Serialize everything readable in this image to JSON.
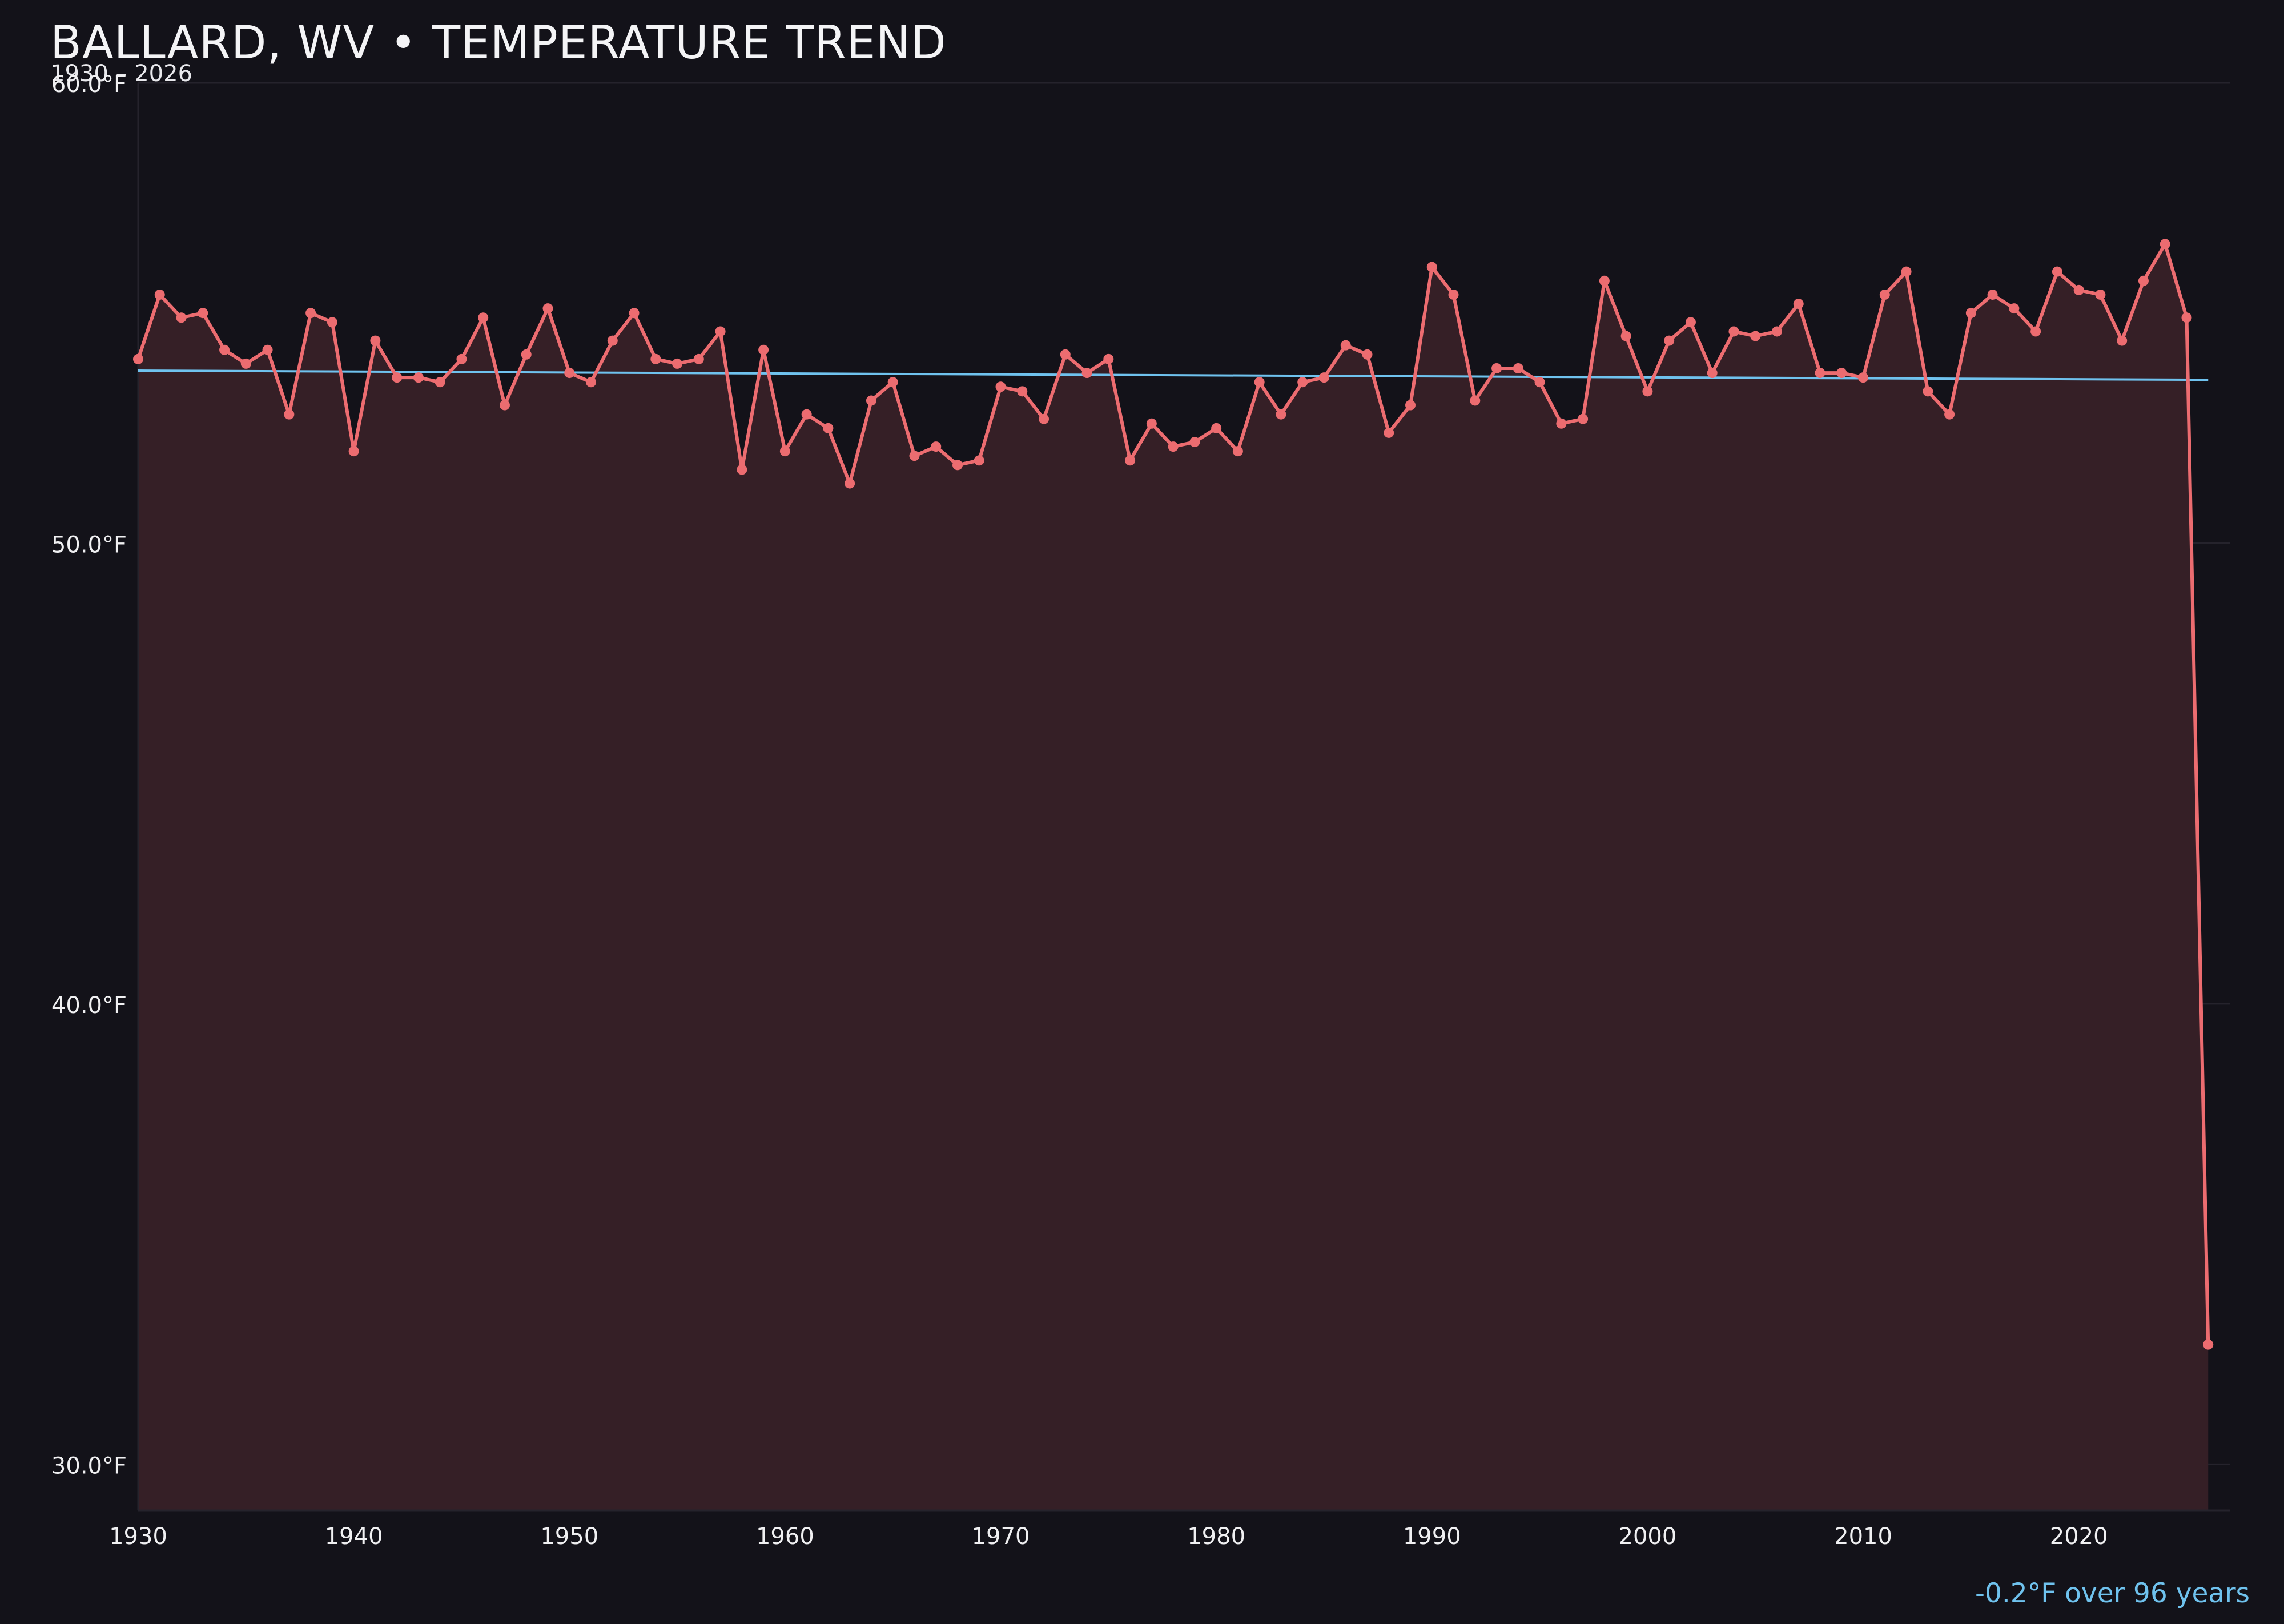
{
  "header": {
    "title": "BALLARD, WV • TEMPERATURE TREND",
    "subtitle": "1930 – 2026"
  },
  "footer": {
    "trend_note": "-0.2°F over 96 years"
  },
  "colors": {
    "background": "#131219",
    "series_line": "#ec6c70",
    "series_fill": "#351f26",
    "trend_line": "#6fc2ee",
    "grid": "#25232c",
    "axis_text": "#f0f0f2"
  },
  "chart_data": {
    "type": "line",
    "title": "BALLARD, WV • TEMPERATURE TREND",
    "subtitle": "1930 – 2026",
    "xlabel": "",
    "ylabel": "",
    "xlim": [
      1930,
      2027
    ],
    "ylim": [
      29,
      60
    ],
    "grid": true,
    "x_ticks": [
      1930,
      1940,
      1950,
      1960,
      1970,
      1980,
      1990,
      2000,
      2010,
      2020
    ],
    "x_tick_labels": [
      "1930",
      "1940",
      "1950",
      "1960",
      "1970",
      "1980",
      "1990",
      "2000",
      "2010",
      "2020"
    ],
    "y_ticks": [
      30,
      40,
      50,
      60
    ],
    "y_tick_labels": [
      "30.0°F",
      "40.0°F",
      "50.0°F",
      "60.0°F"
    ],
    "series": [
      {
        "type": "area-line",
        "x": [
          1930,
          1931,
          1932,
          1933,
          1934,
          1935,
          1936,
          1937,
          1938,
          1939,
          1940,
          1941,
          1942,
          1943,
          1944,
          1945,
          1946,
          1947,
          1948,
          1949,
          1950,
          1951,
          1952,
          1953,
          1954,
          1955,
          1956,
          1957,
          1958,
          1959,
          1960,
          1961,
          1962,
          1963,
          1964,
          1965,
          1966,
          1967,
          1968,
          1969,
          1970,
          1971,
          1972,
          1973,
          1974,
          1975,
          1976,
          1977,
          1978,
          1979,
          1980,
          1981,
          1982,
          1983,
          1984,
          1985,
          1986,
          1987,
          1988,
          1989,
          1990,
          1991,
          1992,
          1993,
          1994,
          1995,
          1996,
          1997,
          1998,
          1999,
          2000,
          2001,
          2002,
          2003,
          2004,
          2005,
          2006,
          2007,
          2008,
          2009,
          2010,
          2011,
          2012,
          2013,
          2014,
          2015,
          2016,
          2017,
          2018,
          2019,
          2020,
          2021,
          2022,
          2023,
          2024,
          2025,
          2026
        ],
        "values": [
          54.0,
          55.4,
          54.9,
          55.0,
          54.2,
          53.9,
          54.2,
          52.8,
          55.0,
          54.8,
          52.0,
          54.4,
          53.6,
          53.6,
          53.5,
          54.0,
          54.9,
          53.0,
          54.1,
          55.1,
          53.7,
          53.5,
          54.4,
          55.0,
          54.0,
          53.9,
          54.0,
          54.6,
          51.6,
          54.2,
          52.0,
          52.8,
          52.5,
          51.3,
          53.1,
          53.5,
          51.9,
          52.1,
          51.7,
          51.8,
          53.4,
          53.3,
          52.7,
          54.1,
          53.7,
          54.0,
          51.8,
          52.6,
          52.1,
          52.2,
          52.5,
          52.0,
          53.5,
          52.8,
          53.5,
          53.6,
          54.3,
          54.1,
          52.4,
          53.0,
          56.0,
          55.4,
          53.1,
          53.8,
          53.8,
          53.5,
          52.6,
          52.7,
          55.7,
          54.5,
          53.3,
          54.4,
          54.8,
          53.7,
          54.6,
          54.5,
          54.6,
          55.2,
          53.7,
          53.7,
          53.6,
          55.4,
          55.9,
          53.3,
          52.8,
          55.0,
          55.4,
          55.1,
          54.6,
          55.9,
          55.5,
          55.4,
          54.4,
          55.7,
          56.5,
          54.9,
          32.6
        ]
      },
      {
        "type": "trend",
        "x": [
          1930,
          2026
        ],
        "values": [
          53.75,
          53.55
        ]
      }
    ]
  }
}
